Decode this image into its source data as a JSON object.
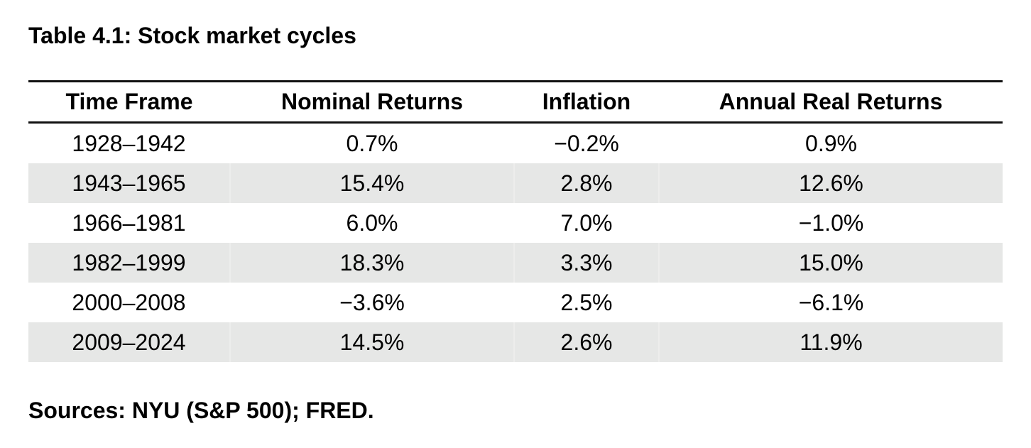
{
  "title": "Table 4.1: Stock market cycles",
  "table": {
    "headers": [
      "Time Frame",
      "Nominal Returns",
      "Inflation",
      "Annual Real Returns"
    ],
    "rows": [
      [
        "1928–1942",
        "0.7%",
        "−0.2%",
        "0.9%"
      ],
      [
        "1943–1965",
        "15.4%",
        "2.8%",
        "12.6%"
      ],
      [
        "1966–1981",
        "6.0%",
        "7.0%",
        "−1.0%"
      ],
      [
        "1982–1999",
        "18.3%",
        "3.3%",
        "15.0%"
      ],
      [
        "2000–2008",
        "−3.6%",
        "2.5%",
        "−6.1%"
      ],
      [
        "2009–2024",
        "14.5%",
        "2.6%",
        "11.9%"
      ]
    ]
  },
  "source": "Sources: NYU (S&P 500); FRED.",
  "colors": {
    "shaded_row": "#e6e7e6",
    "rule": "#111111"
  }
}
